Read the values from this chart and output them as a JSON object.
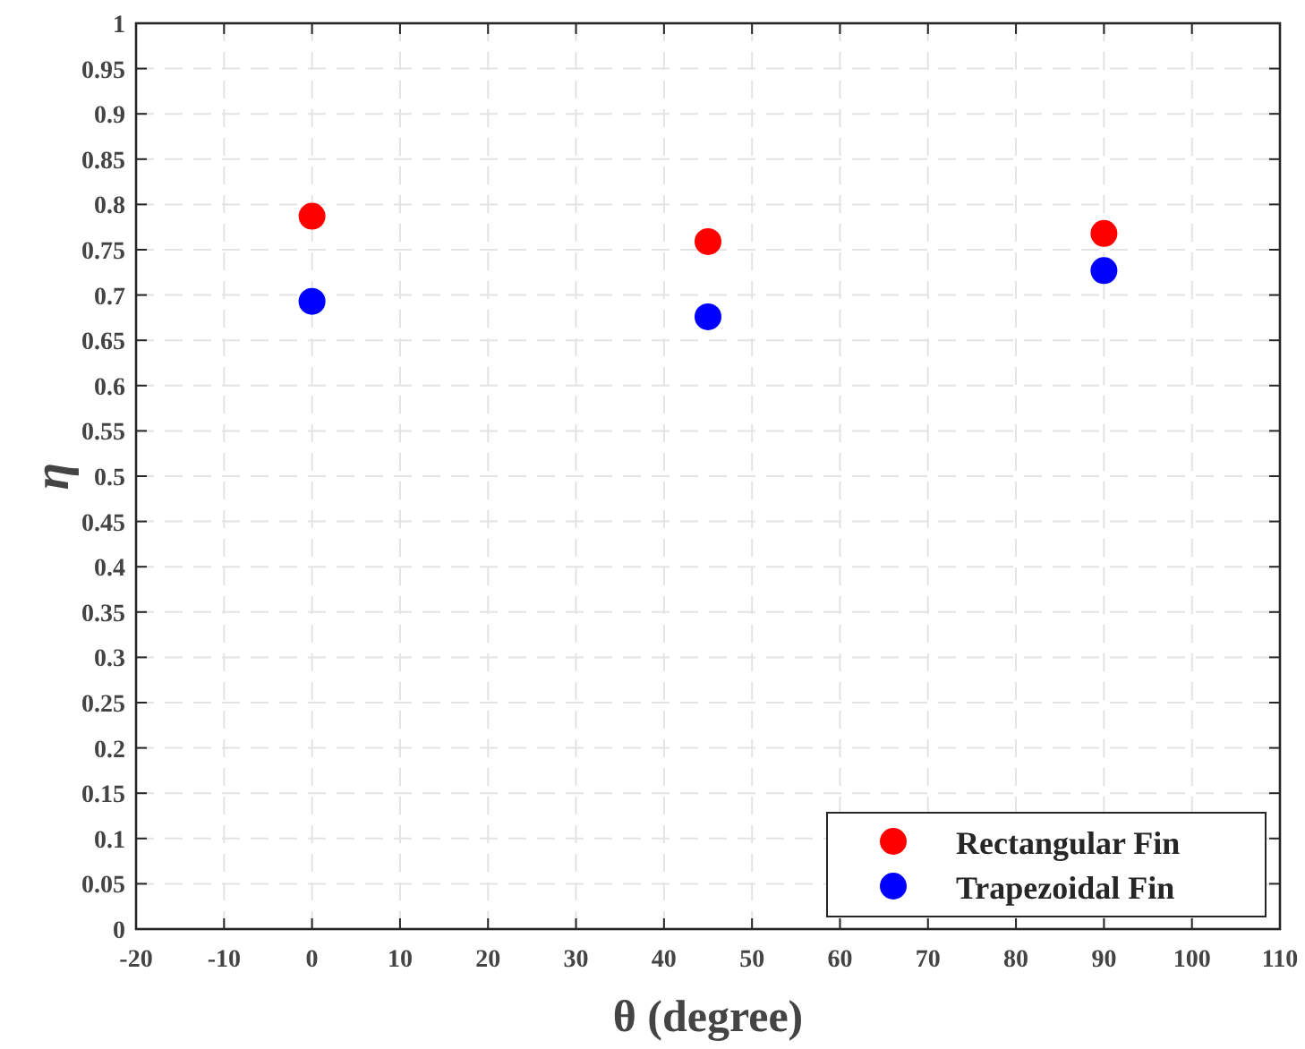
{
  "chart_data": {
    "type": "scatter",
    "xlabel": "θ (degree)",
    "ylabel": "η",
    "x": [
      0,
      45,
      90
    ],
    "series": [
      {
        "name": "Rectangular Fin",
        "color": "#ff0000",
        "values": [
          0.787,
          0.759,
          0.768
        ]
      },
      {
        "name": "Trapezoidal Fin",
        "color": "#0000ff",
        "values": [
          0.693,
          0.676,
          0.727
        ]
      }
    ],
    "xlim": [
      -20,
      110
    ],
    "xticks": [
      -20,
      -10,
      0,
      10,
      20,
      30,
      40,
      50,
      60,
      70,
      80,
      90,
      100,
      110
    ],
    "ylim": [
      0,
      1
    ],
    "yticks": [
      0,
      0.05,
      0.1,
      0.15,
      0.2,
      0.25,
      0.3,
      0.35,
      0.4,
      0.45,
      0.5,
      0.55,
      0.6,
      0.65,
      0.7,
      0.75,
      0.8,
      0.85,
      0.9,
      0.95,
      1
    ],
    "grid": true,
    "legend": "bottom right",
    "marker": "circle"
  }
}
